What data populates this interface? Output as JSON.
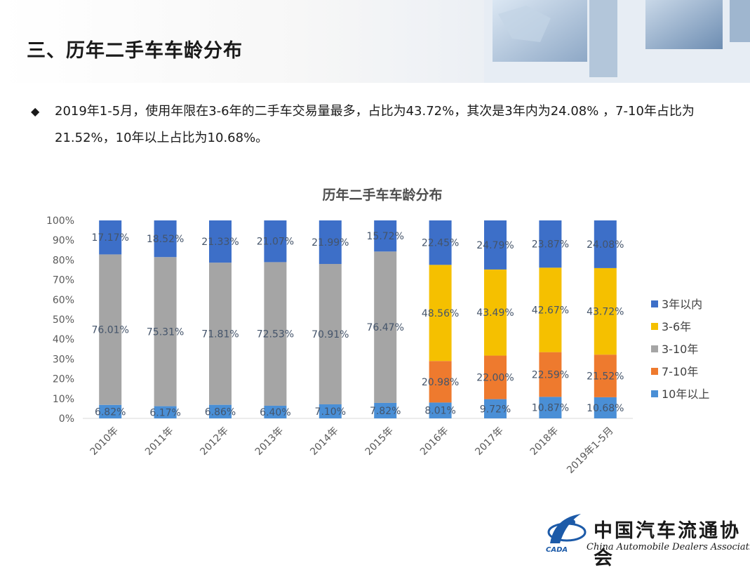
{
  "header": {
    "title": "三、历年二手车车龄分布"
  },
  "intro": {
    "bullet": "◆",
    "text": "2019年1-5月，使用年限在3-6年的二手车交易量最多，占比为43.72%，其次是3年内为24.08% ，7-10年占比为21.52%，10年以上占比为10.68%。"
  },
  "logo": {
    "name_cn": "中国汽车流通协会",
    "name_en": "China Automobile Dealers Association",
    "abbr": "CADA"
  },
  "chart_data": {
    "type": "bar",
    "stacked": true,
    "title": "历年二手车车龄分布",
    "categories": [
      "2010年",
      "2011年",
      "2012年",
      "2013年",
      "2014年",
      "2015年",
      "2016年",
      "2017年",
      "2018年",
      "2019年1-5月"
    ],
    "yticks": [
      "0%",
      "10%",
      "20%",
      "30%",
      "40%",
      "50%",
      "60%",
      "70%",
      "80%",
      "90%",
      "100%"
    ],
    "ylim": [
      0,
      100
    ],
    "legend_position": "right",
    "series": [
      {
        "name": "10年以上",
        "color": "#4a8fd6",
        "values": [
          6.82,
          6.17,
          6.86,
          6.4,
          7.1,
          7.82,
          8.01,
          9.72,
          10.87,
          10.68
        ],
        "labels": [
          "6.82%",
          "6.17%",
          "6.86%",
          "6.40%",
          "7.10%",
          "7.82%",
          "8.01%",
          "9.72%",
          "10.87%",
          "10.68%"
        ]
      },
      {
        "name": "7-10年",
        "color": "#ee7a2e",
        "values": [
          0,
          0,
          0,
          0,
          0,
          0,
          20.98,
          22.0,
          22.59,
          21.52
        ],
        "labels": [
          "",
          "",
          "",
          "",
          "",
          "",
          "20.98%",
          "22.00%",
          "22.59%",
          "21.52%"
        ]
      },
      {
        "name": "3-10年",
        "color": "#a5a5a5",
        "values": [
          76.01,
          75.31,
          71.81,
          72.53,
          70.91,
          76.47,
          0,
          0,
          0,
          0
        ],
        "labels": [
          "76.01%",
          "75.31%",
          "71.81%",
          "72.53%",
          "70.91%",
          "76.47%",
          "",
          "",
          "",
          ""
        ]
      },
      {
        "name": "3-6年",
        "color": "#f5c000",
        "values": [
          0,
          0,
          0,
          0,
          0,
          0,
          48.56,
          43.49,
          42.67,
          43.72
        ],
        "labels": [
          "",
          "",
          "",
          "",
          "",
          "",
          "48.56%",
          "43.49%",
          "42.67%",
          "43.72%"
        ]
      },
      {
        "name": "3年以内",
        "color": "#3d6fc8",
        "values": [
          17.17,
          18.52,
          21.33,
          21.07,
          21.99,
          15.72,
          22.45,
          24.79,
          23.87,
          24.08
        ],
        "labels": [
          "17.17%",
          "18.52%",
          "21.33%",
          "21.07%",
          "21.99%",
          "15.72%",
          "22.45%",
          "24.79%",
          "23.87%",
          "24.08%"
        ]
      }
    ],
    "legend_order": [
      "3年以内",
      "3-6年",
      "3-10年",
      "7-10年",
      "10年以上"
    ]
  }
}
